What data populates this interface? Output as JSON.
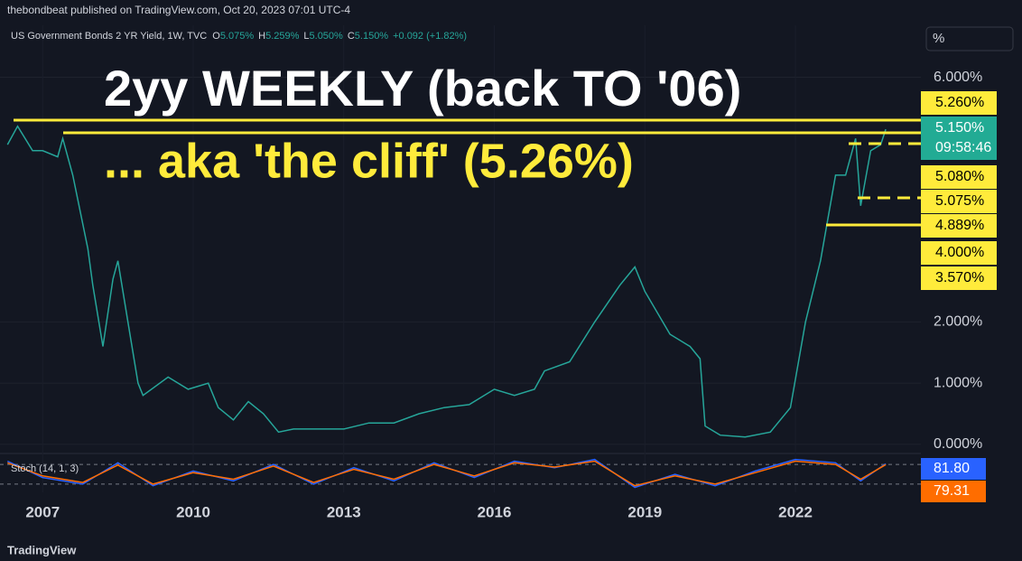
{
  "header": "thebondbeat published on TradingView.com, Oct 20, 2023 07:01 UTC-4",
  "footer": "TradingView",
  "unit_button": "%",
  "chart_data": [
    {
      "type": "line",
      "symbol": "US Government Bonds 2 YR Yield, 1W, TVC",
      "ohlc": [
        {
          "key": "O",
          "text": "5.075%"
        },
        {
          "key": "H",
          "text": "5.259%"
        },
        {
          "key": "L",
          "text": "5.050%"
        },
        {
          "key": "C",
          "text": "5.150%"
        }
      ],
      "change": "+0.092 (+1.82%)",
      "annotations": [
        "2yy WEEKLY (back TO '06)",
        "... aka 'the cliff' (5.26%)"
      ],
      "price_labels": [
        {
          "text": "5.260%",
          "color": "#ffeb3b"
        },
        {
          "text": "5.150%",
          "color": "#22ab94"
        },
        {
          "text": "09:58:46",
          "color": "#22ab94"
        },
        {
          "text": "5.080%",
          "color": "#ffeb3b"
        },
        {
          "text": "5.075%",
          "color": "#ffeb3b"
        },
        {
          "text": "4.889%",
          "color": "#ffeb3b"
        },
        {
          "text": "4.000%",
          "color": "#ffeb3b"
        },
        {
          "text": "3.570%",
          "color": "#ffeb3b"
        }
      ],
      "x": [
        2006.3,
        2006.5,
        2006.8,
        2007.0,
        2007.3,
        2007.4,
        2007.6,
        2007.9,
        2008.0,
        2008.2,
        2008.4,
        2008.5,
        2008.7,
        2008.9,
        2009.0,
        2009.5,
        2009.9,
        2010.3,
        2010.5,
        2010.8,
        2011.1,
        2011.4,
        2011.7,
        2012.0,
        2012.5,
        2013.0,
        2013.5,
        2014.0,
        2014.5,
        2015.0,
        2015.5,
        2016.0,
        2016.4,
        2016.8,
        2017.0,
        2017.5,
        2018.0,
        2018.5,
        2018.8,
        2019.0,
        2019.5,
        2019.9,
        2020.1,
        2020.2,
        2020.5,
        2021.0,
        2021.5,
        2021.9,
        2022.2,
        2022.5,
        2022.8,
        2023.0,
        2023.2,
        2023.3,
        2023.5,
        2023.7,
        2023.8
      ],
      "series": [
        {
          "name": "Yield",
          "color": "#26a69a",
          "values": [
            4.9,
            5.2,
            4.8,
            4.8,
            4.7,
            5.0,
            4.4,
            3.2,
            2.6,
            1.6,
            2.7,
            3.0,
            2.0,
            1.0,
            0.8,
            1.1,
            0.9,
            1.0,
            0.6,
            0.4,
            0.7,
            0.5,
            0.2,
            0.25,
            0.25,
            0.25,
            0.35,
            0.35,
            0.5,
            0.6,
            0.65,
            0.9,
            0.8,
            0.9,
            1.2,
            1.35,
            2.0,
            2.6,
            2.9,
            2.5,
            1.8,
            1.6,
            1.4,
            0.3,
            0.15,
            0.12,
            0.2,
            0.6,
            2.0,
            3.0,
            4.4,
            4.4,
            5.0,
            3.9,
            4.8,
            4.9,
            5.15
          ]
        }
      ],
      "xlim": [
        2006.15,
        2024.5
      ],
      "xticks": [
        2007,
        2010,
        2013,
        2016,
        2019,
        2022
      ],
      "ylim": [
        -0.12,
        6.85
      ],
      "yticks": [
        {
          "value": 0,
          "label": "0.000%"
        },
        {
          "value": 1,
          "label": "1.000%"
        },
        {
          "value": 2,
          "label": "2.000%"
        },
        {
          "value": 6,
          "label": "6.000%"
        }
      ]
    },
    {
      "type": "line",
      "title": "Stoch (14, 1, 3)",
      "x": [
        2006.3,
        2007.0,
        2007.8,
        2008.5,
        2009.2,
        2010.0,
        2010.8,
        2011.6,
        2012.4,
        2013.2,
        2014.0,
        2014.8,
        2015.6,
        2016.4,
        2017.2,
        2018.0,
        2018.8,
        2019.6,
        2020.4,
        2021.2,
        2022.0,
        2022.8,
        2023.3,
        2023.8
      ],
      "series": [
        {
          "name": "K",
          "color": "#2962ff",
          "values": [
            90,
            40,
            20,
            85,
            15,
            60,
            30,
            80,
            20,
            70,
            30,
            85,
            40,
            90,
            70,
            95,
            10,
            50,
            15,
            60,
            95,
            85,
            30,
            81.8
          ],
          "value_label": "81.80"
        },
        {
          "name": "D",
          "color": "#ff6d00",
          "values": [
            85,
            45,
            25,
            78,
            20,
            55,
            35,
            75,
            25,
            65,
            35,
            80,
            45,
            85,
            72,
            90,
            15,
            45,
            20,
            55,
            90,
            80,
            35,
            79.31
          ],
          "value_label": "79.31"
        }
      ],
      "xlim": [
        2006.15,
        2024.5
      ],
      "ylim": [
        -5,
        105
      ],
      "bands": [
        80,
        20
      ]
    }
  ]
}
